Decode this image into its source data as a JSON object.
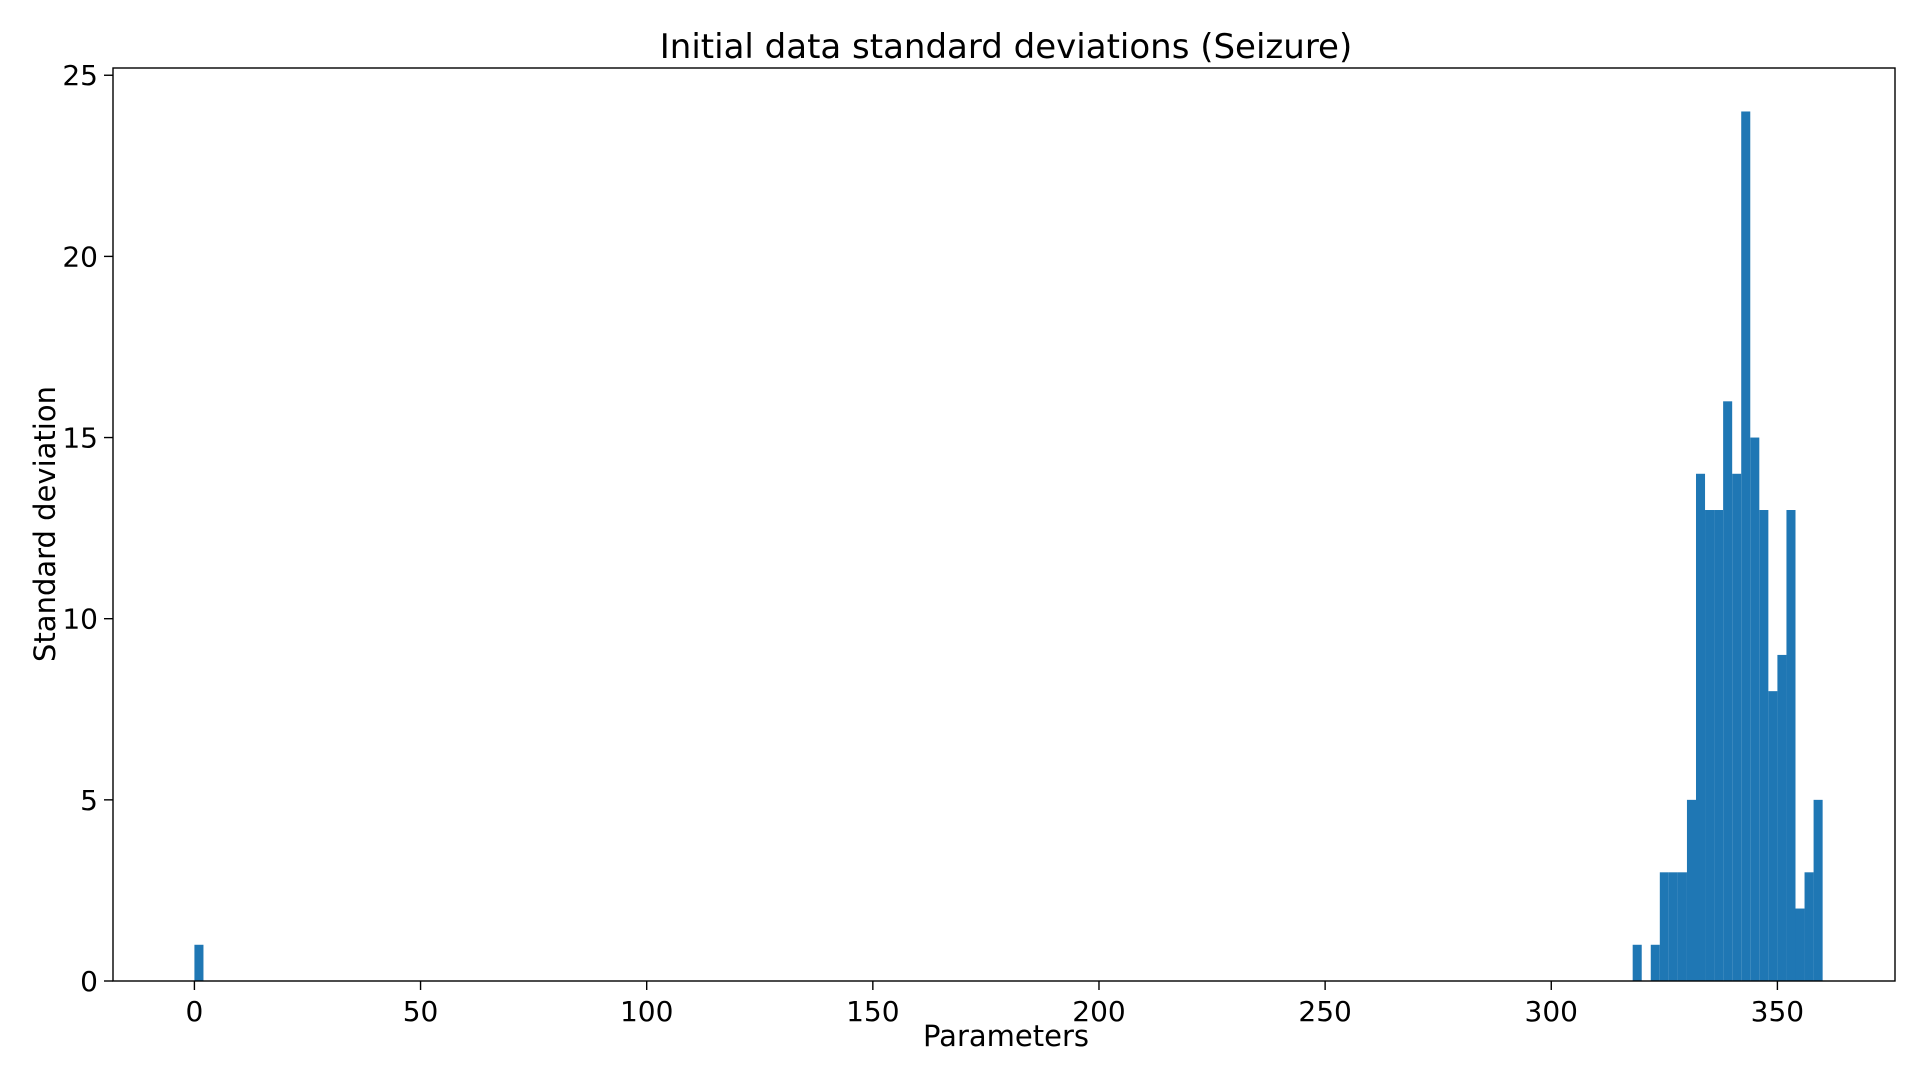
{
  "chart_data": {
    "type": "bar",
    "title": "Initial data standard deviations (Seizure)",
    "xlabel": "Parameters",
    "ylabel": "Standard deviation",
    "xlim": [
      -18,
      376
    ],
    "ylim": [
      0,
      25.2
    ],
    "xticks": [
      0,
      50,
      100,
      150,
      200,
      250,
      300,
      350
    ],
    "yticks": [
      0,
      5,
      10,
      15,
      20,
      25
    ],
    "bin_width": 2,
    "bar_color": "#1f77b4",
    "grid": false,
    "legend": "none",
    "bins": [
      {
        "x": 0,
        "value": 1
      },
      {
        "x": 318,
        "value": 1
      },
      {
        "x": 320,
        "value": 0
      },
      {
        "x": 322,
        "value": 1
      },
      {
        "x": 324,
        "value": 3
      },
      {
        "x": 326,
        "value": 3
      },
      {
        "x": 328,
        "value": 3
      },
      {
        "x": 330,
        "value": 5
      },
      {
        "x": 332,
        "value": 14
      },
      {
        "x": 334,
        "value": 13
      },
      {
        "x": 336,
        "value": 13
      },
      {
        "x": 338,
        "value": 16
      },
      {
        "x": 340,
        "value": 14
      },
      {
        "x": 342,
        "value": 24
      },
      {
        "x": 344,
        "value": 15
      },
      {
        "x": 346,
        "value": 13
      },
      {
        "x": 348,
        "value": 8
      },
      {
        "x": 350,
        "value": 9
      },
      {
        "x": 352,
        "value": 13
      },
      {
        "x": 354,
        "value": 2
      },
      {
        "x": 356,
        "value": 3
      },
      {
        "x": 358,
        "value": 5
      }
    ]
  }
}
